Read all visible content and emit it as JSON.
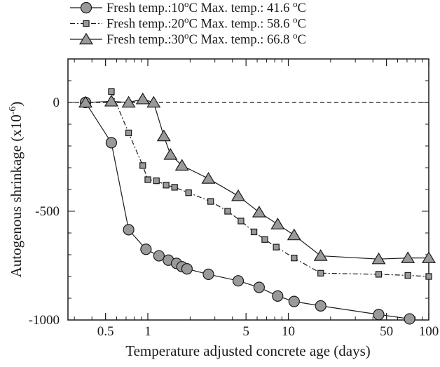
{
  "chart_data": {
    "type": "line",
    "xscale": "log",
    "xlabel": "Temperature adjusted concrete age (days)",
    "ylabel": "Autogenous shrinkage (x10",
    "ylabel_exp": "-6",
    "ylabel_close": ")",
    "xlim": [
      0.27,
      100
    ],
    "ylim": [
      -1000,
      200
    ],
    "xticks": [
      {
        "value": 0.5,
        "label": "0.5"
      },
      {
        "value": 1,
        "label": "1"
      },
      {
        "value": 5,
        "label": "5"
      },
      {
        "value": 10,
        "label": "10"
      },
      {
        "value": 50,
        "label": "50"
      },
      {
        "value": 100,
        "label": "100"
      }
    ],
    "yticks": [
      {
        "value": 0,
        "label": "0"
      },
      {
        "value": -500,
        "label": "-500"
      },
      {
        "value": -1000,
        "label": "-1000"
      }
    ],
    "reference_line": {
      "y": 0,
      "style": "dashed"
    },
    "legend_position": "top-left, above plot",
    "series": [
      {
        "name": "Fresh temp.:10oC Max. temp.: 41.6 oC",
        "legend": {
          "a": "Fresh temp.:10",
          "a_sup": "o",
          "b": "C Max. temp.: 41.6 ",
          "b_sup": "o",
          "c": "C"
        },
        "marker": "circle",
        "line_style": "solid",
        "x": [
          0.36,
          0.55,
          0.73,
          0.97,
          1.2,
          1.4,
          1.6,
          1.75,
          1.9,
          2.7,
          4.4,
          6.2,
          8.4,
          11,
          17,
          44,
          73
        ],
        "y": [
          0,
          -185,
          -585,
          -675,
          -705,
          -725,
          -740,
          -755,
          -765,
          -790,
          -820,
          -850,
          -890,
          -915,
          -935,
          -975,
          -995
        ]
      },
      {
        "name": "Fresh temp.:20oC Max. temp.: 58.6 oC",
        "legend": {
          "a": "Fresh temp.:20",
          "a_sup": "o",
          "b": "C Max. temp.: 58.6 ",
          "b_sup": "o",
          "c": "C"
        },
        "marker": "square",
        "line_style": "dash-dot",
        "x": [
          0.55,
          0.73,
          0.92,
          1.0,
          1.15,
          1.35,
          1.55,
          1.95,
          2.8,
          3.7,
          4.6,
          5.7,
          6.8,
          8.2,
          11,
          17,
          44,
          71,
          100
        ],
        "y": [
          50,
          -140,
          -290,
          -355,
          -360,
          -380,
          -390,
          -415,
          -455,
          -500,
          -545,
          -595,
          -630,
          -665,
          -715,
          -785,
          -790,
          -795,
          -800
        ]
      },
      {
        "name": "Fresh temp.:30oC Max. temp.: 66.8 oC",
        "legend": {
          "a": "Fresh temp.:30",
          "a_sup": "o",
          "b": "C Max. temp.: 66.8 ",
          "b_sup": "o",
          "c": "C"
        },
        "marker": "triangle",
        "line_style": "solid",
        "x": [
          0.36,
          0.55,
          0.73,
          0.92,
          1.1,
          1.3,
          1.45,
          1.75,
          2.7,
          4.4,
          6.2,
          8.4,
          11,
          17,
          44,
          71,
          100
        ],
        "y": [
          0,
          5,
          0,
          15,
          0,
          -155,
          -240,
          -290,
          -350,
          -430,
          -505,
          -560,
          -610,
          -705,
          -720,
          -715,
          -715
        ]
      }
    ]
  },
  "colors": {
    "marker_fill": "#9a9a9a",
    "stroke": "#1a1a1a",
    "background": "#ffffff"
  }
}
